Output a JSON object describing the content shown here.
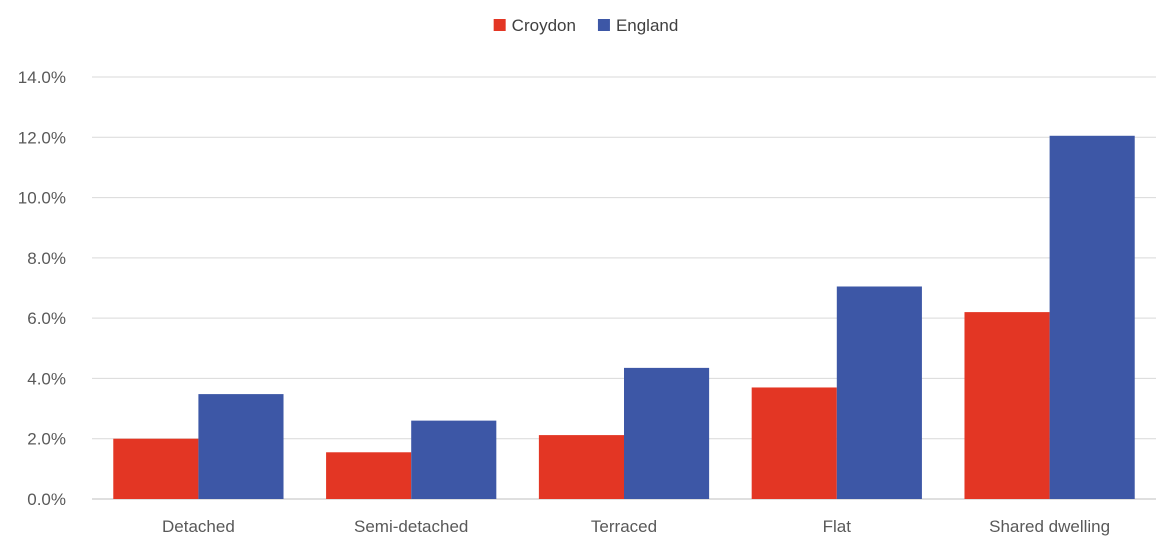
{
  "chart_data": {
    "type": "bar",
    "categories": [
      "Detached",
      "Semi-detached",
      "Terraced",
      "Flat",
      "Shared dwelling"
    ],
    "series": [
      {
        "name": "Croydon",
        "color": "#E33624",
        "values": [
          2.0,
          1.55,
          2.12,
          3.7,
          6.2
        ]
      },
      {
        "name": "England",
        "color": "#3D57A6",
        "values": [
          3.48,
          2.6,
          4.35,
          7.05,
          12.05
        ]
      }
    ],
    "y_ticks": [
      "0.0%",
      "2.0%",
      "4.0%",
      "6.0%",
      "8.0%",
      "10.0%",
      "12.0%",
      "14.0%"
    ],
    "ylim": [
      0,
      14
    ],
    "y_format": "percent",
    "grid": true,
    "legend_position": "top-center",
    "title": "",
    "xlabel": "",
    "ylabel": ""
  }
}
